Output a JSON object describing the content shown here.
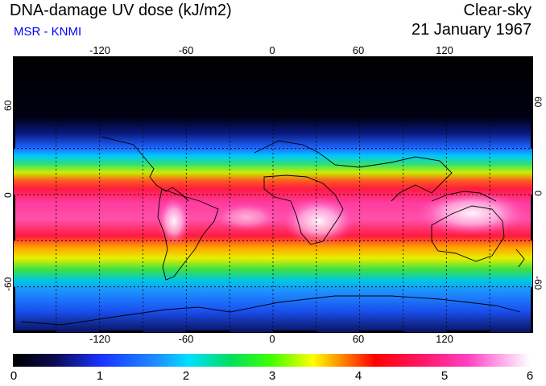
{
  "header": {
    "title": "DNA-damage UV dose (kJ/m2)",
    "subtitle": "MSR - KNMI",
    "condition": "Clear-sky",
    "date": "21 January 1967"
  },
  "colors": {
    "subtitle": "#0000ff",
    "frame": "#000000",
    "grid": "#000000",
    "coastline": "#000000"
  },
  "map": {
    "projection": "equirectangular",
    "lon_range": [
      -180,
      180
    ],
    "lat_range": [
      -90,
      90
    ],
    "lon_ticks": [
      "-120",
      "-60",
      "0",
      "60",
      "120"
    ],
    "lon_tick_values": [
      -120,
      -60,
      0,
      60,
      120
    ],
    "lat_ticks": [
      "60",
      "0",
      "-60"
    ],
    "lat_tick_values": [
      60,
      0,
      -60
    ],
    "gridlines": "dashed",
    "colormap": "black-blue-cyan-green-yellow-red-magenta-white"
  },
  "colorbar": {
    "labels": [
      "0",
      "1",
      "2",
      "3",
      "4",
      "5",
      "6"
    ],
    "min": 0,
    "max": 6
  }
}
